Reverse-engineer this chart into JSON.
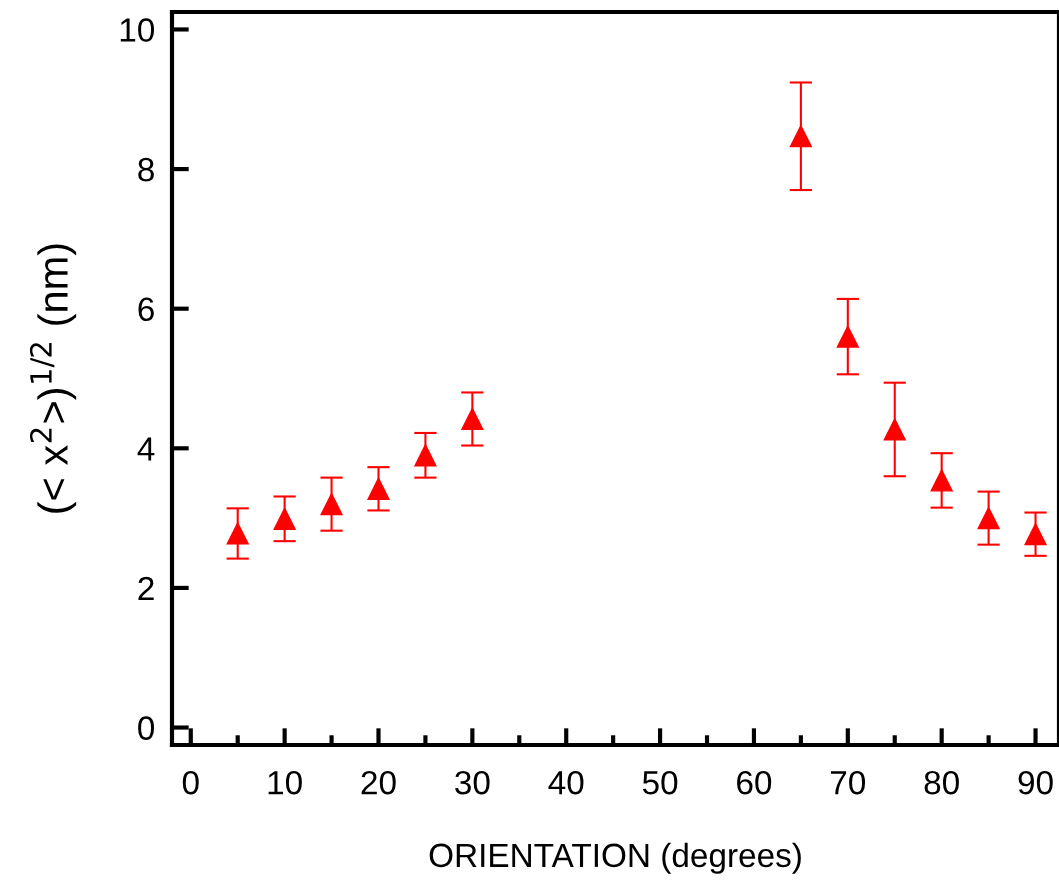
{
  "chart_data": {
    "type": "scatter",
    "xlabel": "ORIENTATION (degrees)",
    "ylabel": "(< x$^{2}$>)$^{1/2}$ (nm)",
    "x": [
      5,
      10,
      15,
      20,
      25,
      30,
      65,
      70,
      75,
      80,
      85,
      90
    ],
    "series": [
      {
        "color": "#ff0000",
        "values": [
          2.78,
          2.99,
          3.2,
          3.42,
          3.9,
          4.42,
          8.47,
          5.6,
          4.27,
          3.54,
          3.0,
          2.77
        ],
        "errors": [
          0.36,
          0.32,
          0.38,
          0.31,
          0.32,
          0.38,
          0.77,
          0.54,
          0.67,
          0.39,
          0.38,
          0.31
        ]
      }
    ],
    "marker": "triangle",
    "grid": false,
    "legend": false,
    "xlim": [
      -2,
      92.5
    ],
    "ylim": [
      -0.25,
      10.25
    ],
    "xticks": [
      0,
      {
        "value": 5,
        "label": null
      },
      10,
      {
        "value": 15,
        "label": null
      },
      20,
      {
        "value": 25,
        "label": null
      },
      30,
      {
        "value": 35,
        "label": null
      },
      40,
      {
        "value": 45,
        "label": null
      },
      50,
      {
        "value": 55,
        "label": null
      },
      60,
      {
        "value": 65,
        "label": null
      },
      70,
      {
        "value": 75,
        "label": null
      },
      80,
      {
        "value": 85,
        "label": null
      },
      90
    ],
    "yticks": [
      0,
      2,
      4,
      6,
      8,
      10
    ]
  }
}
